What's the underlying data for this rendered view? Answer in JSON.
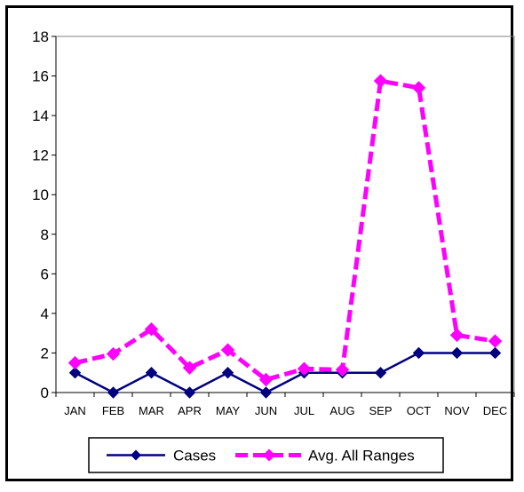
{
  "chart_data": {
    "type": "line",
    "title": "",
    "xlabel": "",
    "ylabel": "",
    "categories": [
      "JAN",
      "FEB",
      "MAR",
      "APR",
      "MAY",
      "JUN",
      "JUL",
      "AUG",
      "SEP",
      "OCT",
      "NOV",
      "DEC"
    ],
    "ylim": [
      0,
      18
    ],
    "yticks": [
      0,
      2,
      4,
      6,
      8,
      10,
      12,
      14,
      16,
      18
    ],
    "grid": false,
    "legend_position": "bottom",
    "series": [
      {
        "name": "Cases",
        "values": [
          1,
          0,
          1,
          0,
          1,
          0,
          1,
          1,
          1,
          2,
          2,
          2
        ],
        "color": "#000080",
        "line_style": "solid",
        "marker": "diamond"
      },
      {
        "name": "Avg. All Ranges",
        "values": [
          1.5,
          1.95,
          3.2,
          1.25,
          2.15,
          0.65,
          1.2,
          1.15,
          15.75,
          15.4,
          2.9,
          2.6
        ],
        "color": "#FF00FF",
        "line_style": "dashed",
        "marker": "diamond"
      }
    ]
  }
}
